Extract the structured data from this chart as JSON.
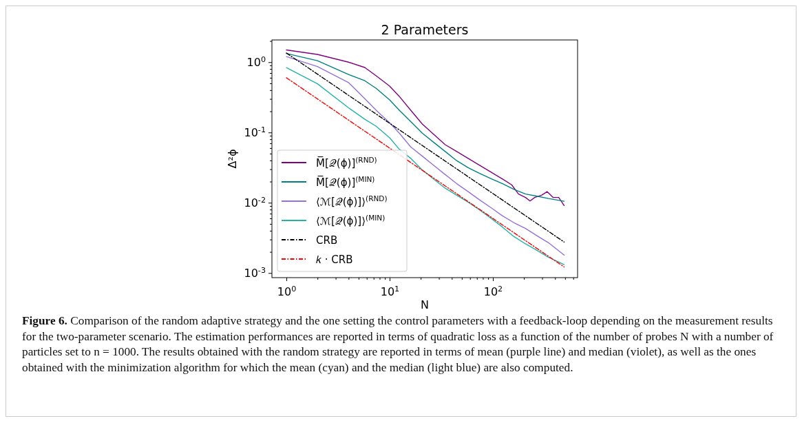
{
  "chart_data": {
    "type": "line",
    "title": "2 Parameters",
    "xlabel": "N",
    "ylabel": "Δ²ϕ",
    "log": "xy",
    "legend": "bottom left",
    "marker": "none",
    "grid": false,
    "xlim": [
      0.724,
      661
    ],
    "ylim": [
      0.00086,
      2.07
    ],
    "xticks": [
      {
        "value": 1,
        "label": "10$^{0}$"
      },
      {
        "value": 2,
        "label": null
      },
      {
        "value": 3,
        "label": null
      },
      {
        "value": 4,
        "label": null
      },
      {
        "value": 5,
        "label": null
      },
      {
        "value": 6,
        "label": null
      },
      {
        "value": 7,
        "label": null
      },
      {
        "value": 8,
        "label": null
      },
      {
        "value": 9,
        "label": null
      },
      {
        "value": 10,
        "label": "10$^{1}$"
      },
      {
        "value": 20,
        "label": null
      },
      {
        "value": 30,
        "label": null
      },
      {
        "value": 40,
        "label": null
      },
      {
        "value": 50,
        "label": null
      },
      {
        "value": 60,
        "label": null
      },
      {
        "value": 70,
        "label": null
      },
      {
        "value": 80,
        "label": null
      },
      {
        "value": 90,
        "label": null
      },
      {
        "value": 100,
        "label": "10$^{2}$"
      },
      {
        "value": 200,
        "label": null
      },
      {
        "value": 300,
        "label": null
      },
      {
        "value": 400,
        "label": null
      },
      {
        "value": 500,
        "label": null
      },
      {
        "value": 600,
        "label": null
      }
    ],
    "yticks": [
      {
        "value": 0.001,
        "label": "10$^{-3}$"
      },
      {
        "value": 0.002,
        "label": null
      },
      {
        "value": 0.003,
        "label": null
      },
      {
        "value": 0.004,
        "label": null
      },
      {
        "value": 0.005,
        "label": null
      },
      {
        "value": 0.006,
        "label": null
      },
      {
        "value": 0.007,
        "label": null
      },
      {
        "value": 0.008,
        "label": null
      },
      {
        "value": 0.009,
        "label": null
      },
      {
        "value": 0.01,
        "label": "10$^{-2}$"
      },
      {
        "value": 0.02,
        "label": null
      },
      {
        "value": 0.03,
        "label": null
      },
      {
        "value": 0.04,
        "label": null
      },
      {
        "value": 0.05,
        "label": null
      },
      {
        "value": 0.06,
        "label": null
      },
      {
        "value": 0.07,
        "label": null
      },
      {
        "value": 0.08,
        "label": null
      },
      {
        "value": 0.09,
        "label": null
      },
      {
        "value": 0.1,
        "label": "10$^{-1}$"
      },
      {
        "value": 0.2,
        "label": null
      },
      {
        "value": 0.3,
        "label": null
      },
      {
        "value": 0.4,
        "label": null
      },
      {
        "value": 0.5,
        "label": null
      },
      {
        "value": 0.6,
        "label": null
      },
      {
        "value": 0.7,
        "label": null
      },
      {
        "value": 0.8,
        "label": null
      },
      {
        "value": 0.9,
        "label": null
      },
      {
        "value": 1,
        "label": "10$^{0}$"
      },
      {
        "value": 2,
        "label": null
      }
    ],
    "series": [
      {
        "name": "M̅[𝒬(ϕ)]$^{(RND)}$",
        "color": "#800080",
        "line_style": "solid",
        "x": [
          1,
          2,
          4,
          5.75,
          7.4,
          10,
          12.4,
          16,
          20.7,
          26.7,
          34.5,
          44.6,
          57.5,
          74.3,
          96,
          124,
          152,
          177,
          207,
          229,
          254,
          296,
          336,
          382,
          434,
          490
        ],
        "values": [
          1.49,
          1.29,
          1.0,
          0.84,
          0.64,
          0.457,
          0.326,
          0.207,
          0.132,
          0.094,
          0.067,
          0.0536,
          0.0428,
          0.0341,
          0.0272,
          0.0217,
          0.018,
          0.0133,
          0.0119,
          0.0106,
          0.0119,
          0.0128,
          0.0144,
          0.0119,
          0.0119,
          0.0091
        ]
      },
      {
        "name": "M̅[𝒬(ϕ)]$^{(MIN)}$",
        "color": "#008080",
        "line_style": "solid",
        "x": [
          1,
          2,
          4,
          5.75,
          7.4,
          10,
          12.4,
          16,
          20.7,
          26.7,
          34.5,
          44.6,
          57.5,
          74.3,
          96,
          124,
          160,
          207,
          267,
          345,
          490
        ],
        "values": [
          1.33,
          1.05,
          0.667,
          0.544,
          0.424,
          0.291,
          0.207,
          0.1425,
          0.0977,
          0.0723,
          0.0536,
          0.0397,
          0.0316,
          0.0262,
          0.022,
          0.0187,
          0.0155,
          0.0133,
          0.0124,
          0.0115,
          0.0105
        ]
      },
      {
        "name": "⟨ℳ[𝒬(ϕ)]⟩$^{(RND)}$",
        "color": "#9370db",
        "line_style": "solid",
        "x": [
          1,
          2,
          4,
          5.75,
          7.4,
          10,
          12.4,
          16,
          20.7,
          26.7,
          34.5,
          44.6,
          57.5,
          74.3,
          96,
          124,
          160,
          207,
          267,
          345,
          490
        ],
        "values": [
          1.2,
          0.867,
          0.512,
          0.302,
          0.207,
          0.137,
          0.0977,
          0.0622,
          0.046,
          0.0341,
          0.0252,
          0.0187,
          0.0144,
          0.011,
          0.0085,
          0.0065,
          0.0052,
          0.0043,
          0.0034,
          0.0027,
          0.0018
        ]
      },
      {
        "name": "⟨ℳ[𝒬(ϕ)]⟩$^{(MIN)}$",
        "color": "#20b2aa",
        "line_style": "solid",
        "x": [
          1,
          2,
          4,
          5.75,
          7.4,
          10,
          12.4,
          16,
          20.7,
          26.7,
          34.5,
          44.6,
          57.5,
          74.3,
          96,
          124,
          160,
          207,
          267,
          345,
          490
        ],
        "values": [
          0.835,
          0.493,
          0.224,
          0.154,
          0.1225,
          0.084,
          0.0577,
          0.0428,
          0.0293,
          0.0217,
          0.0161,
          0.0128,
          0.0102,
          0.0079,
          0.006,
          0.0045,
          0.0033,
          0.0026,
          0.0021,
          0.00168,
          0.00132
        ]
      },
      {
        "name": "CRB",
        "color": "#000000",
        "line_style": "dashdot",
        "x": [
          1,
          490
        ],
        "values": [
          1.35,
          0.00276
        ]
      },
      {
        "name": "𝑘 · CRB",
        "color": "#ff0000",
        "line_style": "dashdot",
        "x": [
          1,
          490
        ],
        "values": [
          0.6,
          0.00122
        ]
      }
    ],
    "annotations": [
      "Figure 6.",
      "Comparison of the random adaptive strategy and the one setting the control parameters with a feedback-loop depending on the measurement results for the two-parameter scenario. The estimation performances are reported in terms of quadratic loss as a function of the number of probes N with a number of particles set to n = 1000. The results obtained with the random strategy are reported in terms of mean (purple line) and median (violet), as well as the ones obtained with the minimization algorithm for which the mean (cyan) and the median (light blue) are also computed."
    ]
  }
}
